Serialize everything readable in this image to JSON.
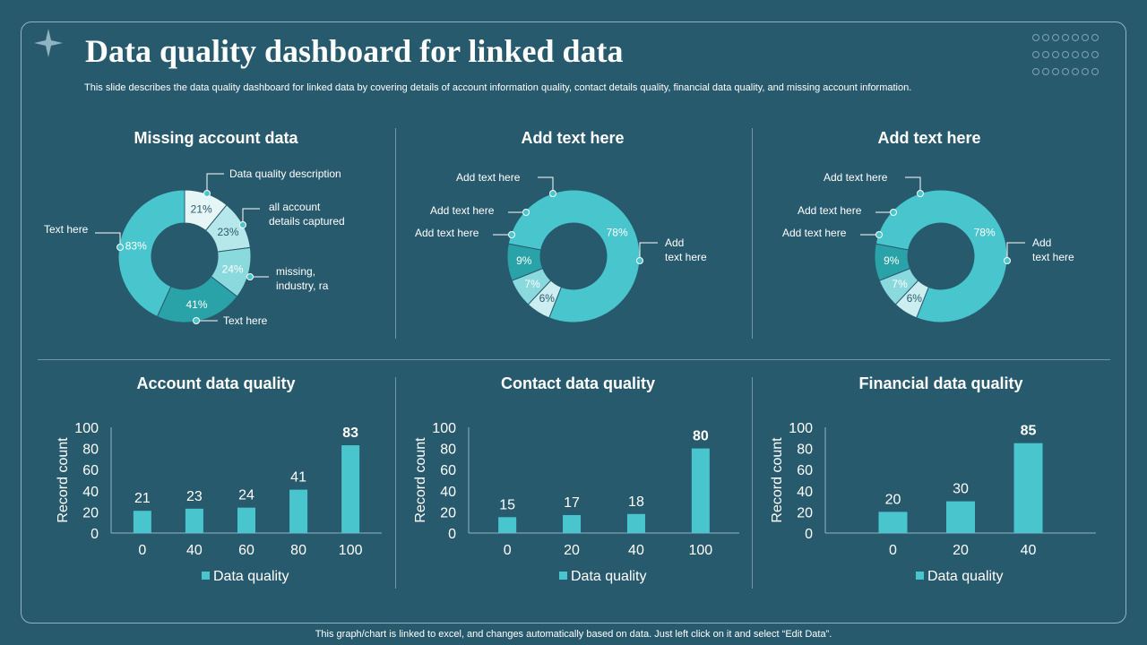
{
  "title": "Data quality dashboard for linked data",
  "subtitle": "This slide describes the data quality dashboard for linked data by covering details of account information quality, contact details quality, financial data quality, and missing account information.",
  "footer": "This graph/chart is linked to excel,  and changes automatically based on data. Just left click on it and select “Edit Data”.",
  "colors": {
    "background": "#285a6e",
    "accent": "#49c6cd",
    "dark_teal": "#2a9ea3",
    "light": "#d8f2f3"
  },
  "donuts": [
    {
      "title": "Missing account data",
      "slices": [
        {
          "value": 21,
          "label": "21%",
          "color": "#e6f6f7",
          "callout": "Data quality description"
        },
        {
          "value": 23,
          "label": "23%",
          "color": "#b6e7ea",
          "callout": "all account\ndetails captured"
        },
        {
          "value": 24,
          "label": "24%",
          "color": "#8ad9dd",
          "callout": "missing,\nindustry, ra"
        },
        {
          "value": 41,
          "label": "41%",
          "color": "#2aa3a8",
          "callout": "Text here"
        },
        {
          "value": 83,
          "label": "83%",
          "color": "#49c6cd",
          "callout": "Text here"
        }
      ]
    },
    {
      "title": "Add text here",
      "slices": [
        {
          "value": 78,
          "label": "78%",
          "color": "#49c6cd",
          "callout": "Add\ntext here"
        },
        {
          "value": 6,
          "label": "6%",
          "color": "#cdeef0",
          "callout": "Add text here"
        },
        {
          "value": 7,
          "label": "7%",
          "color": "#8ad9dd",
          "callout": "Add text here"
        },
        {
          "value": 9,
          "label": "9%",
          "color": "#2aa3a8",
          "callout": "Add text here"
        }
      ]
    },
    {
      "title": "Add text here",
      "slices": [
        {
          "value": 78,
          "label": "78%",
          "color": "#49c6cd",
          "callout": "Add\ntext here"
        },
        {
          "value": 6,
          "label": "6%",
          "color": "#cdeef0",
          "callout": "Add text here"
        },
        {
          "value": 7,
          "label": "7%",
          "color": "#8ad9dd",
          "callout": "Add text here"
        },
        {
          "value": 9,
          "label": "9%",
          "color": "#2aa3a8",
          "callout": "Add text here"
        }
      ]
    }
  ],
  "chart_data": [
    {
      "type": "bar",
      "title": "Account data quality",
      "categories": [
        "0",
        "40",
        "60",
        "80",
        "100"
      ],
      "values": [
        21,
        23,
        24,
        41,
        83
      ],
      "ylabel": "Record count",
      "ylim": [
        0,
        100
      ],
      "yticks": [
        0,
        20,
        40,
        60,
        80,
        100
      ],
      "legend": "Data quality",
      "highlight_max": true
    },
    {
      "type": "bar",
      "title": "Contact data quality",
      "categories": [
        "0",
        "20",
        "40",
        "100"
      ],
      "values": [
        15,
        17,
        18,
        80
      ],
      "ylabel": "Record count",
      "ylim": [
        0,
        100
      ],
      "yticks": [
        0,
        20,
        40,
        60,
        80,
        100
      ],
      "legend": "Data quality",
      "highlight_max": true
    },
    {
      "type": "bar",
      "title": "Financial data quality",
      "categories": [
        "0",
        "20",
        "40"
      ],
      "values": [
        20,
        30,
        85
      ],
      "ylabel": "Record count",
      "ylim": [
        0,
        100
      ],
      "yticks": [
        0,
        20,
        40,
        60,
        80,
        100
      ],
      "legend": "Data quality",
      "highlight_max": true
    }
  ]
}
